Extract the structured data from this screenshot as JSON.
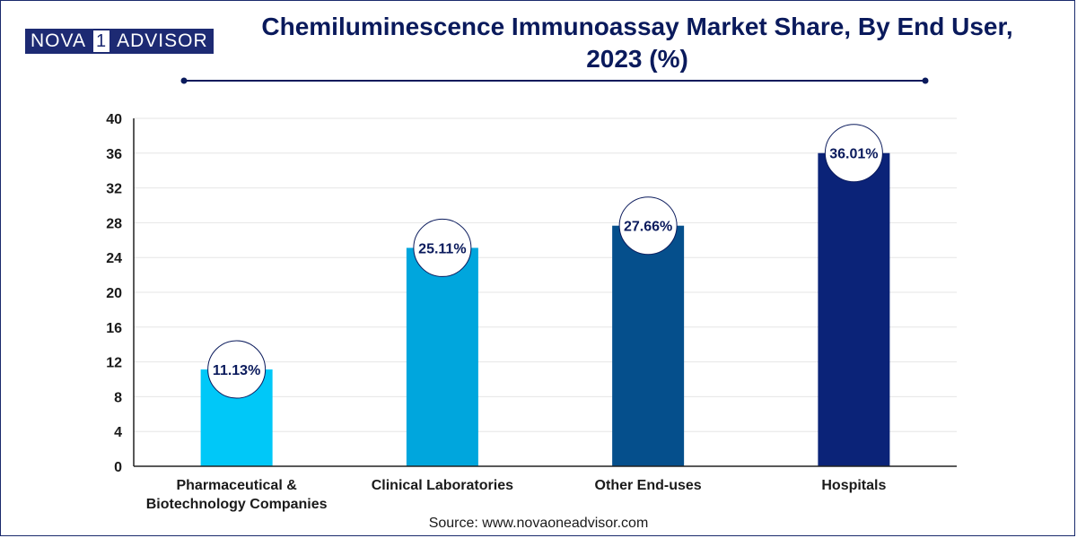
{
  "brand": {
    "logo_left": "NOVA",
    "logo_mid": "1",
    "logo_right": "ADVISOR"
  },
  "header": {
    "title_line1": "Chemiluminescence Immunoassay Market Share, By End User,",
    "title_line2": "2023 (%)"
  },
  "footer": {
    "source": "Source: www.novaoneadvisor.com"
  },
  "chart_data": {
    "type": "bar",
    "title": "Chemiluminescence Immunoassay Market Share, By End User, 2023 (%)",
    "categories": [
      [
        "Pharmaceutical &",
        "Biotechnology Companies"
      ],
      [
        "Clinical Laboratories"
      ],
      [
        "Other End-uses"
      ],
      [
        "Hospitals"
      ]
    ],
    "values": [
      11.13,
      25.11,
      27.66,
      36.01
    ],
    "data_labels": [
      "11.13%",
      "25.11%",
      "27.66%",
      "36.01%"
    ],
    "colors": [
      "#00c8f8",
      "#00a6dd",
      "#054f8c",
      "#0b2378"
    ],
    "ylim": [
      0,
      40
    ],
    "yticks": [
      0,
      4,
      8,
      12,
      16,
      20,
      24,
      28,
      32,
      36,
      40
    ],
    "grid": true,
    "legend": "none",
    "xlabel": "",
    "ylabel": ""
  },
  "colors": {
    "accent": "#0a1a5c",
    "grid": "#e6e6e6"
  }
}
